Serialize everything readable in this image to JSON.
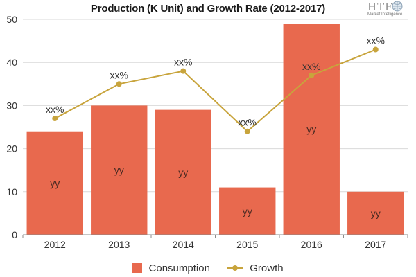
{
  "chart_data": {
    "type": "bar",
    "title": "Production (K Unit) and Growth Rate (2012-2017)",
    "categories": [
      "2012",
      "2013",
      "2014",
      "2015",
      "2016",
      "2017"
    ],
    "series": [
      {
        "name": "Consumption",
        "type": "bar",
        "values": [
          24,
          30,
          29,
          11,
          49,
          10
        ],
        "labels": [
          "yy",
          "yy",
          "yy",
          "yy",
          "yy",
          "yy"
        ],
        "color": "#e8694e"
      },
      {
        "name": "Growth",
        "type": "line",
        "values": [
          27,
          35,
          38,
          24,
          37,
          43
        ],
        "labels": [
          "xx%",
          "xx%",
          "xx%",
          "xx%",
          "xx%",
          "xx%"
        ],
        "color": "#c8a43c"
      }
    ],
    "ylim": [
      0,
      50
    ],
    "yticks": [
      0,
      10,
      20,
      30,
      40,
      50
    ],
    "xlabel": "",
    "ylabel": "",
    "grid": true,
    "legend_position": "bottom"
  },
  "logo": {
    "name": "HTF",
    "subtitle": "Market Intelligence"
  }
}
